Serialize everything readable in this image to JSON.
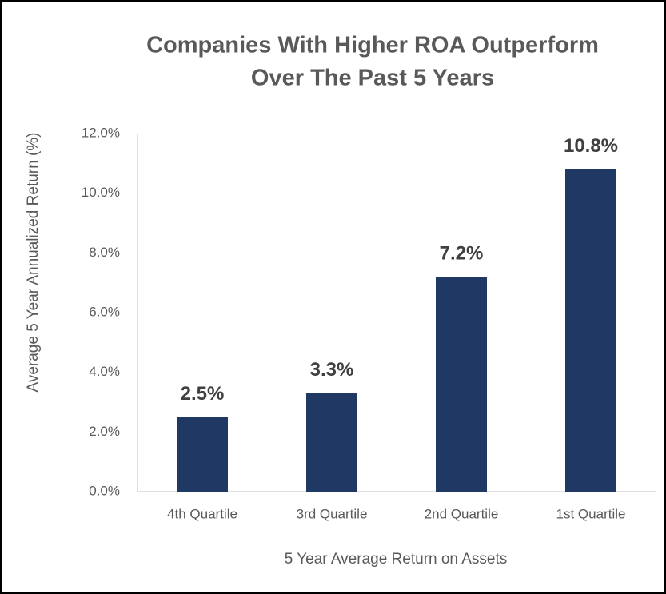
{
  "chart_data": {
    "type": "bar",
    "title": [
      "Companies With Higher ROA Outperform",
      "Over The Past 5 Years"
    ],
    "x_label": "5 Year Average Return on Assets",
    "y_label": "Average 5 Year Annualized Return (%)",
    "categories": [
      "4th Quartile",
      "3rd Quartile",
      "2nd Quartile",
      "1st Quartile"
    ],
    "values": [
      2.5,
      3.3,
      7.2,
      10.8
    ],
    "value_labels": [
      "2.5%",
      "3.3%",
      "7.2%",
      "10.8%"
    ],
    "color": "#203864",
    "ylim": [
      0,
      12
    ],
    "yticks": [
      {
        "value": 0,
        "label": "0.0%"
      },
      {
        "value": 2,
        "label": "2.0%"
      },
      {
        "value": 4,
        "label": "4.0%"
      },
      {
        "value": 6,
        "label": "6.0%"
      },
      {
        "value": 8,
        "label": "8.0%"
      },
      {
        "value": 10,
        "label": "10.0%"
      },
      {
        "value": 12,
        "label": "12.0%"
      }
    ],
    "grid": false
  }
}
